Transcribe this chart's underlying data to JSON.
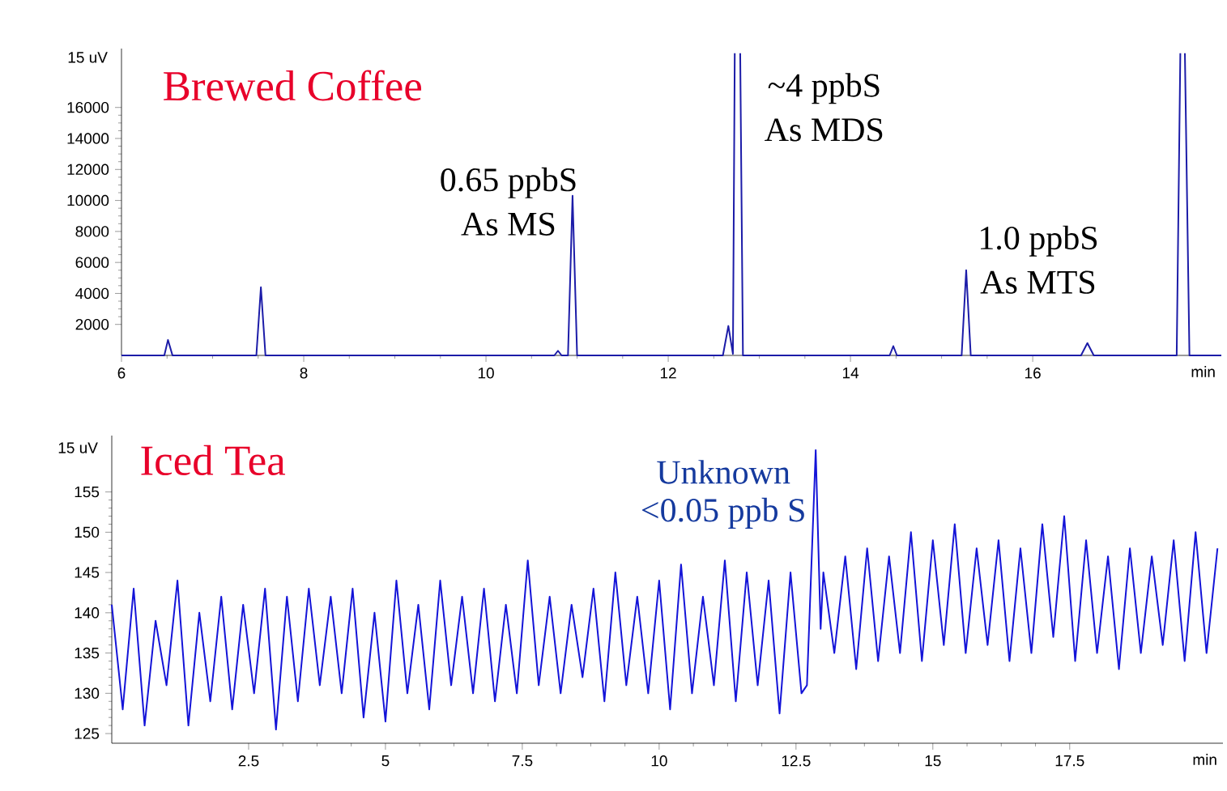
{
  "chart_data": [
    {
      "type": "line",
      "title": "Brewed Coffee",
      "xlabel": "min",
      "ylabel": "15 uV",
      "color": "#1c1ca8",
      "x": [
        6.0,
        6.47,
        6.51,
        6.56,
        7.48,
        7.53,
        7.58,
        10.75,
        10.79,
        10.83,
        10.9,
        10.95,
        11.0,
        12.6,
        12.66,
        12.71,
        12.73,
        12.76,
        12.79,
        12.82,
        14.43,
        14.47,
        14.51,
        15.22,
        15.27,
        15.32,
        16.53,
        16.6,
        16.67,
        17.58,
        17.62,
        17.64,
        17.67,
        17.72,
        18.07
      ],
      "values": [
        0,
        0,
        1000,
        0,
        0,
        4400,
        0,
        0,
        300,
        0,
        0,
        10300,
        0,
        0,
        1900,
        100,
        19500,
        null,
        19500,
        0,
        0,
        600,
        0,
        0,
        5500,
        0,
        0,
        800,
        0,
        0,
        19500,
        null,
        19500,
        0,
        0
      ],
      "xlim": [
        6,
        18.07
      ],
      "ylim": [
        0,
        19800
      ],
      "xticks": [
        6,
        8,
        10,
        12,
        14,
        16
      ],
      "yticks": [
        2000,
        4000,
        6000,
        8000,
        10000,
        12000,
        14000,
        16000
      ],
      "annotations": [
        {
          "text": "0.65 ppbS",
          "x": 10.95,
          "y": 10300
        },
        {
          "text": "As MS",
          "x": 10.95,
          "y": 10300
        },
        "~4 ppbS",
        "As MDS",
        {
          "text": "1.0 ppbS",
          "x": 15.27,
          "y": 5500
        },
        {
          "text": "As MTS",
          "x": 15.27,
          "y": 5500
        }
      ]
    },
    {
      "type": "line",
      "title": "Iced Tea",
      "xlabel": "min",
      "ylabel": "15 uV",
      "color": "#1414d8",
      "x": [
        0.0,
        0.2,
        0.4,
        0.6,
        0.8,
        1.0,
        1.2,
        1.4,
        1.6,
        1.8,
        2.0,
        2.2,
        2.4,
        2.6,
        2.8,
        3.0,
        3.2,
        3.4,
        3.6,
        3.8,
        4.0,
        4.2,
        4.4,
        4.6,
        4.8,
        5.0,
        5.2,
        5.4,
        5.6,
        5.8,
        6.0,
        6.2,
        6.4,
        6.6,
        6.8,
        7.0,
        7.2,
        7.4,
        7.6,
        7.8,
        8.0,
        8.2,
        8.4,
        8.6,
        8.8,
        9.0,
        9.2,
        9.4,
        9.6,
        9.8,
        10.0,
        10.2,
        10.4,
        10.6,
        10.8,
        11.0,
        11.2,
        11.4,
        11.6,
        11.8,
        12.0,
        12.2,
        12.4,
        12.6,
        12.7,
        12.86,
        12.95,
        13.0,
        13.2,
        13.4,
        13.6,
        13.8,
        14.0,
        14.2,
        14.4,
        14.6,
        14.8,
        15.0,
        15.2,
        15.4,
        15.6,
        15.8,
        16.0,
        16.2,
        16.4,
        16.6,
        16.8,
        17.0,
        17.2,
        17.4,
        17.6,
        17.8,
        18.0,
        18.2,
        18.4,
        18.6,
        18.8,
        19.0,
        19.2,
        19.4,
        19.6,
        19.8,
        20.0,
        20.2
      ],
      "values": [
        141,
        128,
        143,
        126,
        139,
        131,
        144,
        126,
        140,
        129,
        142,
        128,
        141,
        130,
        143,
        125.5,
        142,
        129,
        143,
        131,
        142,
        130,
        143,
        127,
        140,
        126.5,
        144,
        130,
        141,
        128,
        144,
        131,
        142,
        130,
        143,
        129,
        141,
        130,
        146.5,
        131,
        142,
        130,
        141,
        132,
        143,
        129,
        145,
        131,
        142,
        130,
        144,
        128,
        146,
        130,
        142,
        131,
        146.5,
        129,
        145,
        131,
        144,
        127.5,
        145,
        130,
        131,
        160.2,
        138,
        145,
        135,
        147,
        133,
        148,
        134,
        147,
        135,
        150,
        134,
        149,
        136,
        151,
        135,
        148,
        136,
        149,
        134,
        148,
        135,
        151,
        137,
        152,
        134,
        149,
        135,
        147,
        133,
        148,
        135,
        147,
        136,
        149,
        134,
        150,
        135,
        148
      ],
      "xlim": [
        0,
        20.3
      ],
      "ylim": [
        123.8,
        162
      ],
      "xticks": [
        2.5,
        5,
        7.5,
        10,
        12.5,
        15,
        17.5
      ],
      "yticks": [
        125,
        130,
        135,
        140,
        145,
        150,
        155
      ],
      "annotations": [
        {
          "text": "Unknown",
          "x": 12.86,
          "y": 160.2
        },
        {
          "text": "<0.05 ppb S",
          "x": 12.86,
          "y": 160.2
        }
      ]
    }
  ]
}
